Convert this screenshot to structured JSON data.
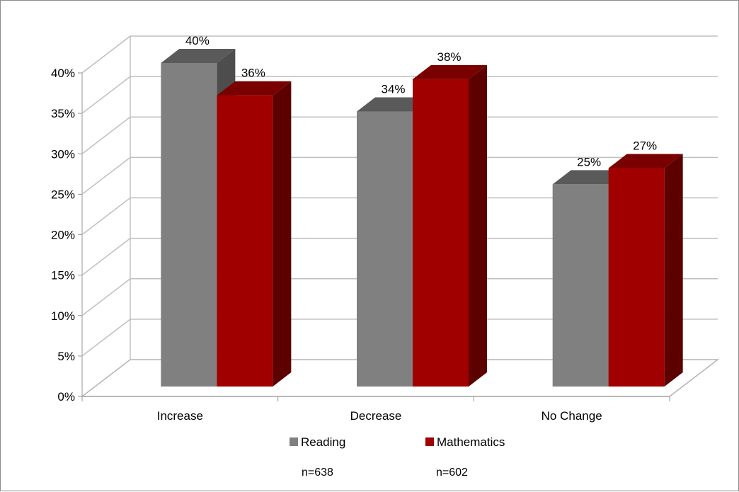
{
  "chart_data": {
    "type": "bar",
    "categories": [
      "Increase",
      "Decrease",
      "No Change"
    ],
    "series": [
      {
        "name": "Reading",
        "values": [
          40,
          34,
          25
        ],
        "labels": [
          "40%",
          "34%",
          "25%"
        ],
        "color": "#808080",
        "side_color": "#4d4d4d",
        "top_color": "#5a5a5a"
      },
      {
        "name": "Mathematics",
        "values": [
          36,
          38,
          27
        ],
        "labels": [
          "36%",
          "38%",
          "27%"
        ],
        "color": "#a00000",
        "side_color": "#5c0000",
        "top_color": "#7a0000"
      }
    ],
    "title": "",
    "xlabel": "",
    "ylabel": "",
    "ylim": [
      0,
      40
    ],
    "yticks": [
      0,
      5,
      10,
      15,
      20,
      25,
      30,
      35,
      40
    ],
    "ytick_labels": [
      "0%",
      "5%",
      "10%",
      "15%",
      "20%",
      "25%",
      "30%",
      "35%",
      "40%"
    ],
    "grid": true,
    "legend_position": "bottom",
    "notes": [
      "n=638",
      "n=602"
    ]
  }
}
